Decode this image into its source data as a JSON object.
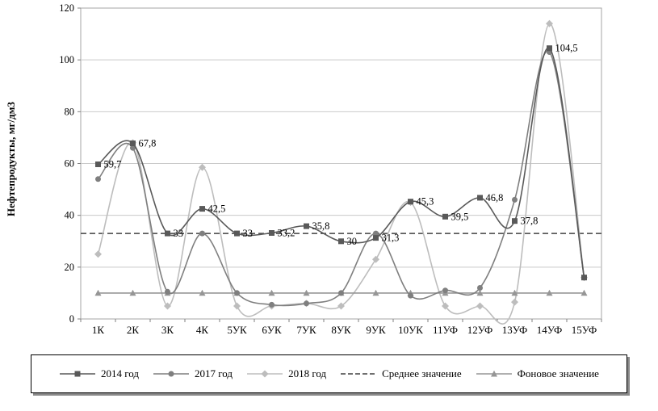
{
  "chart_data": {
    "type": "line",
    "title": "",
    "ylabel": "Нефтепродукты, мг/дм3",
    "xlabel": "",
    "ylim": [
      0,
      120
    ],
    "ystep": 20,
    "grid": "horizontal",
    "legend_position": "bottom",
    "yticks": [
      "0",
      "20",
      "40",
      "60",
      "80",
      "100",
      "120"
    ],
    "categories": [
      "1К",
      "2К",
      "3К",
      "4К",
      "5УК",
      "6УК",
      "7УК",
      "8УК",
      "9УК",
      "10УК",
      "11УФ",
      "12УФ",
      "13УФ",
      "14УФ",
      "15УФ"
    ],
    "series": [
      {
        "name": "2014 год",
        "marker": "square",
        "color": "#595959",
        "values": [
          59.7,
          67.8,
          33,
          42.5,
          33,
          33.2,
          35.8,
          30,
          31.3,
          45.3,
          39.5,
          46.8,
          37.8,
          104.5,
          16
        ],
        "labels": [
          "59,7",
          "67,8",
          "33",
          "42,5",
          "33",
          "33,2",
          "35,8",
          "30",
          "31,3",
          "45,3",
          "39,5",
          "46,8",
          "37,8",
          "104,5",
          ""
        ]
      },
      {
        "name": "2017 год",
        "marker": "circle",
        "color": "#7f7f7f",
        "values": [
          54,
          66,
          10.5,
          33,
          10,
          5.5,
          6,
          10,
          33,
          9,
          11,
          12,
          46,
          103,
          16
        ]
      },
      {
        "name": "2018 год",
        "marker": "diamond",
        "color": "#bdbdbd",
        "values": [
          25,
          68,
          5,
          58.5,
          5,
          5,
          6,
          5,
          23,
          45,
          5,
          5,
          6.5,
          114,
          16
        ]
      },
      {
        "name": "Среднее значение",
        "marker": "none",
        "dashed": true,
        "color": "#404040",
        "constant": 33
      },
      {
        "name": "Фоновое значение",
        "marker": "triangle",
        "color": "#969696",
        "values": [
          10,
          10,
          10,
          10,
          10,
          10,
          10,
          10,
          10,
          10,
          10,
          10,
          10,
          10,
          10
        ]
      }
    ]
  }
}
